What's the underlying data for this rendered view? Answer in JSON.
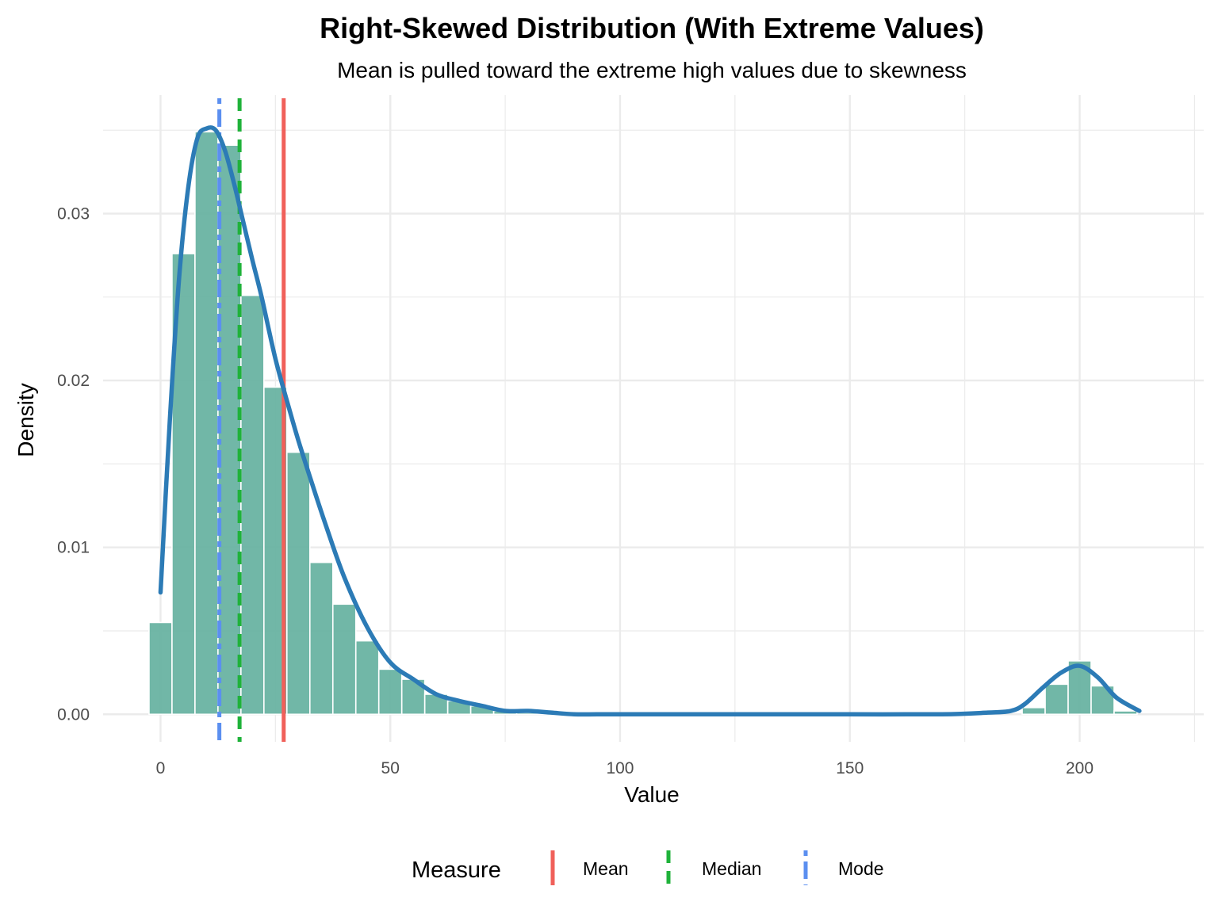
{
  "chart_data": {
    "type": "histogram",
    "title": "Right-Skewed Distribution (With Extreme Values)",
    "subtitle": "Mean is pulled toward the extreme high values due to skewness",
    "xlabel": "Value",
    "ylabel": "Density",
    "xlim": [
      -12.5,
      227
    ],
    "ylim": [
      -0.00165,
      0.0371
    ],
    "x_ticks": [
      0,
      50,
      100,
      150,
      200
    ],
    "x_tick_labels": [
      "0",
      "50",
      "100",
      "150",
      "200"
    ],
    "y_ticks": [
      0,
      0.01,
      0.02,
      0.03
    ],
    "y_tick_labels": [
      "0.00",
      "0.01",
      "0.02",
      "0.03"
    ],
    "bar_color": "#69b3a2",
    "density_color": "#2c7bb6",
    "bin_width": 5,
    "bins": [
      {
        "x": 0,
        "density": 0.0055
      },
      {
        "x": 5,
        "density": 0.0276
      },
      {
        "x": 10,
        "density": 0.0349
      },
      {
        "x": 15,
        "density": 0.0341
      },
      {
        "x": 20,
        "density": 0.0251
      },
      {
        "x": 25,
        "density": 0.0196
      },
      {
        "x": 30,
        "density": 0.0157
      },
      {
        "x": 35,
        "density": 0.0091
      },
      {
        "x": 40,
        "density": 0.0066
      },
      {
        "x": 45,
        "density": 0.0044
      },
      {
        "x": 50,
        "density": 0.0027
      },
      {
        "x": 55,
        "density": 0.0021
      },
      {
        "x": 60,
        "density": 0.0012
      },
      {
        "x": 65,
        "density": 0.0008
      },
      {
        "x": 70,
        "density": 0.0005
      },
      {
        "x": 75,
        "density": 0.0002
      },
      {
        "x": 80,
        "density": 0.0001
      },
      {
        "x": 85,
        "density": 0.0001
      },
      {
        "x": 190,
        "density": 0.0004
      },
      {
        "x": 195,
        "density": 0.0018
      },
      {
        "x": 200,
        "density": 0.0032
      },
      {
        "x": 205,
        "density": 0.0017
      },
      {
        "x": 210,
        "density": 0.0002
      }
    ],
    "density_curve": {
      "x": [
        0,
        2,
        4,
        6,
        8,
        10,
        12,
        14,
        16,
        18,
        20,
        22,
        25,
        28,
        30,
        33,
        36,
        40,
        45,
        50,
        55,
        60,
        65,
        70,
        75,
        80,
        85,
        90,
        95,
        100,
        110,
        120,
        130,
        150,
        170,
        180,
        185,
        188,
        192,
        196,
        200,
        204,
        208,
        213
      ],
      "y": [
        0.0073,
        0.0175,
        0.026,
        0.0315,
        0.0345,
        0.0351,
        0.035,
        0.0338,
        0.0318,
        0.0295,
        0.0272,
        0.025,
        0.0213,
        0.0183,
        0.0164,
        0.0138,
        0.0113,
        0.0082,
        0.0052,
        0.0031,
        0.0021,
        0.0012,
        0.0008,
        0.0005,
        0.0002,
        0.0002,
        0.0001,
        0.0,
        0.0,
        0.0,
        0.0,
        0.0,
        0.0,
        0.0,
        0.0,
        0.0001,
        0.0002,
        0.0006,
        0.0016,
        0.0025,
        0.0029,
        0.0022,
        0.001,
        0.0002
      ]
    },
    "reference_lines": [
      {
        "name": "Mean",
        "value": 26.8,
        "color": "#f0605a",
        "dash": "solid"
      },
      {
        "name": "Median",
        "value": 17.2,
        "color": "#1fb23a",
        "dash": "dashed"
      },
      {
        "name": "Mode",
        "value": 12.8,
        "color": "#5b8ff0",
        "dash": "dotdash"
      }
    ],
    "legend": {
      "title": "Measure",
      "position": "bottom",
      "entries": [
        "Mean",
        "Median",
        "Mode"
      ]
    }
  }
}
